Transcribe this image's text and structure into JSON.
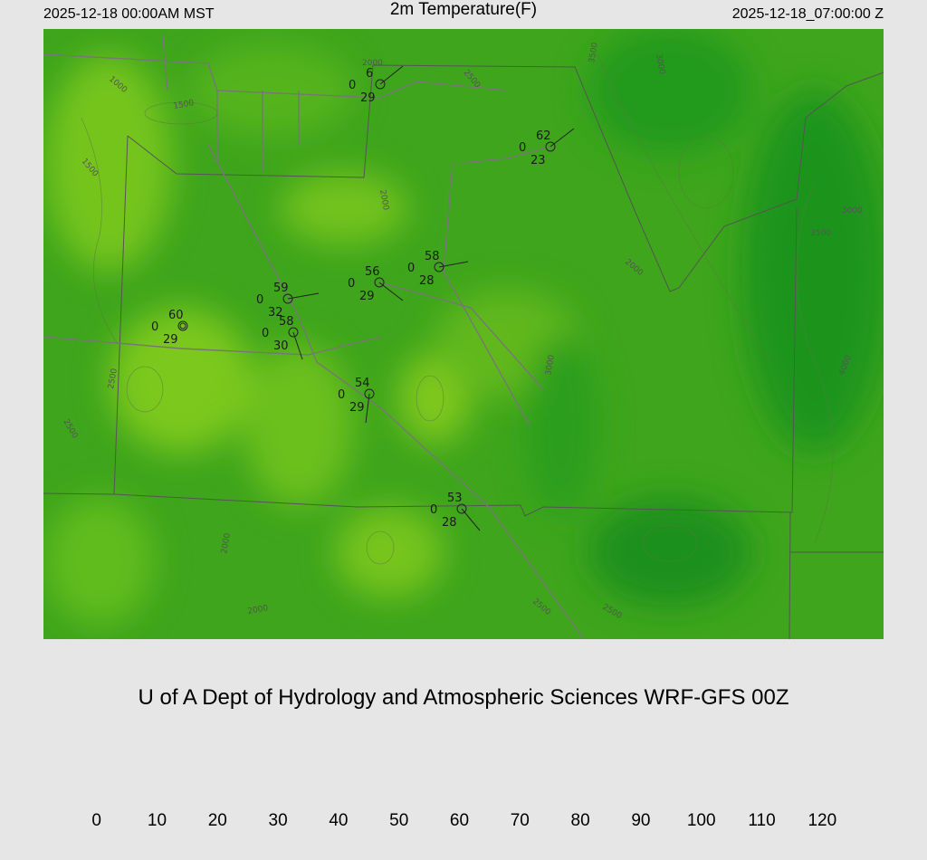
{
  "header": {
    "valid_local": "2025-12-18 00:00AM MST",
    "title": "2m Temperature(F)",
    "valid_utc": "2025-12-18_07:00:00 Z"
  },
  "stations": [
    {
      "temperature": 6,
      "left": 0,
      "bottom": 29
    },
    {
      "temperature": 62,
      "left": 0,
      "bottom": 23
    },
    {
      "temperature": 58,
      "left": 0,
      "bottom": 28
    },
    {
      "temperature": 56,
      "left": 0,
      "bottom": 29
    },
    {
      "temperature": 59,
      "left": 0,
      "bottom": 32
    },
    {
      "temperature": 60,
      "left": 0,
      "bottom": 29
    },
    {
      "temperature": 58,
      "left": 0,
      "bottom": 30
    },
    {
      "temperature": 54,
      "left": 0,
      "bottom": 29
    },
    {
      "temperature": 53,
      "left": 0,
      "bottom": 28
    }
  ],
  "contour_labels": [
    "1000",
    "1500",
    "1500",
    "2000",
    "2000",
    "2500",
    "2000",
    "2000",
    "2500",
    "2500",
    "3000",
    "3500",
    "3000",
    "3500",
    "4000",
    "2500",
    "2000",
    "3000",
    "2500"
  ],
  "credit": "U of A Dept of Hydrology and Atmospheric Sciences WRF-GFS 00Z",
  "colorbar": {
    "range": [
      -1,
      121
    ],
    "ticks": [
      0,
      10,
      20,
      30,
      40,
      50,
      60,
      70,
      80,
      90,
      100,
      110,
      120
    ]
  }
}
